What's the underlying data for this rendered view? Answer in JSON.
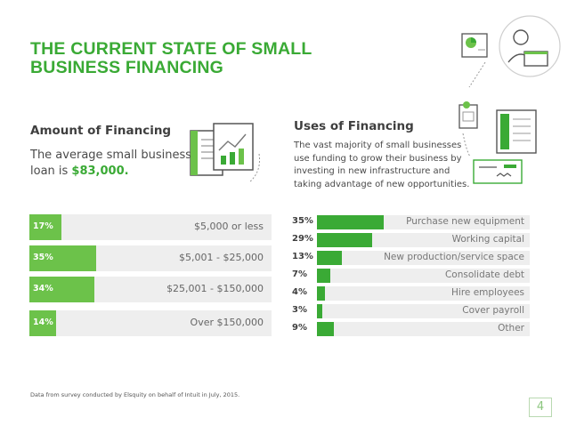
{
  "title": {
    "line1": "THE CURRENT STATE OF SMALL",
    "line2": "BUSINESS FINANCING"
  },
  "amount": {
    "heading": "Amount of Financing",
    "desc_prefix": "The average small business loan is ",
    "desc_amount": "$83,000."
  },
  "uses": {
    "heading": "Uses of Financing",
    "desc": "The vast majority of small businesses use funding to grow their business by investing in new infrastructure and taking advantage of new opportunities."
  },
  "colors": {
    "green": "#3aaa35",
    "light_green": "#6cc24a",
    "track": "#eeeeee"
  },
  "chart_data": [
    {
      "type": "bar",
      "title": "Amount of Financing",
      "categories": [
        "$5,000 or less",
        "$5,001 - $25,000",
        "$25,001 - $150,000",
        "Over $150,000"
      ],
      "values": [
        17,
        35,
        34,
        14
      ],
      "value_labels": [
        "17%",
        "35%",
        "34%",
        "14%"
      ],
      "unit": "%",
      "ylim": [
        0,
        100
      ]
    },
    {
      "type": "bar",
      "title": "Uses of Financing",
      "categories": [
        "Purchase new equipment",
        "Working capital",
        "New production/service space",
        "Consolidate debt",
        "Hire employees",
        "Cover payroll",
        "Other"
      ],
      "values": [
        35,
        29,
        13,
        7,
        4,
        3,
        9
      ],
      "value_labels": [
        "35%",
        "29%",
        "13%",
        "7%",
        "4%",
        "3%",
        "9%"
      ],
      "unit": "%",
      "ylim": [
        0,
        100
      ]
    }
  ],
  "footnote": "Data from survey conducted by Elsquity on behalf of Intuit in July, 2015.",
  "page_number": "4"
}
